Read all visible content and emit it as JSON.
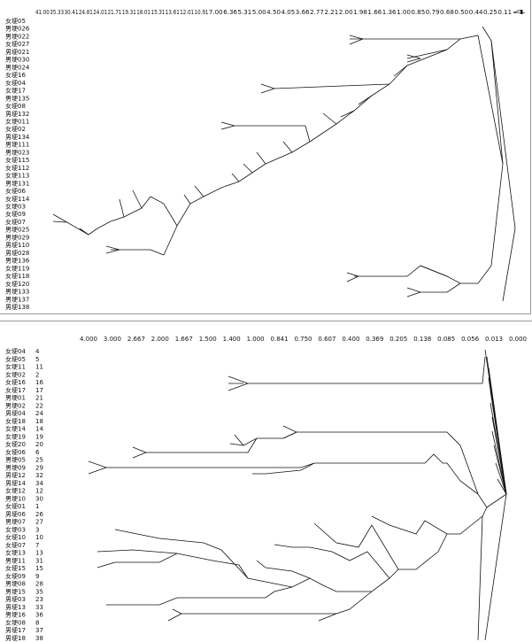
{
  "top_panel": {
    "scale_labels": [
      "41.00",
      "35.33",
      "30.41",
      "24.81",
      "24.01",
      "21.71",
      "19.31",
      "18.01",
      "15.31",
      "13.61",
      "12.01",
      "10.91",
      "7.00",
      "6.36",
      "5.31",
      "5.00",
      "4.50",
      "4.05",
      "3.66",
      "2.77",
      "2.21",
      "2.00",
      "1.98",
      "1.66",
      "1.36",
      "1.00",
      "0.85",
      "0.79",
      "0.68",
      "0.50",
      "0.44",
      "0.25",
      "0.11",
      "4"
    ],
    "leaves": [
      "女埂05",
      "男埂026",
      "男埂022",
      "女埂027",
      "男埂021",
      "男埂030",
      "男埂024",
      "女埂16",
      "女埂04",
      "女埂17",
      "男埂135",
      "女埂08",
      "男埂132",
      "女埂011",
      "女埂02",
      "男埂134",
      "男埂111",
      "男埂023",
      "女埂115",
      "女埂112",
      "女埂113",
      "男埂131",
      "女埂06",
      "女埂114",
      "女埂03",
      "女埂09",
      "女埂07",
      "男埂025",
      "男埂029",
      "男埂110",
      "男埂028",
      "男埂136",
      "女埂119",
      "女埂118",
      "女埂120",
      "男埂133",
      "男埂137",
      "男埂138"
    ]
  },
  "bottom_panel": {
    "scale_labels": [
      "4.000",
      "3.000",
      "2.667",
      "2.000",
      "1.667",
      "1.500",
      "1.400",
      "1.000",
      "0.841",
      "0.750",
      "0.607",
      "0.400",
      "0.369",
      "0.205",
      "0.138",
      "0.085",
      "0.056",
      "0.013",
      "0.000"
    ],
    "leaves": [
      {
        "label": "女埂04",
        "code": "4"
      },
      {
        "label": "女埂05",
        "code": "5"
      },
      {
        "label": "女埂11",
        "code": "11"
      },
      {
        "label": "女埂02",
        "code": "2"
      },
      {
        "label": "女埂16",
        "code": "16"
      },
      {
        "label": "女埂17",
        "code": "17"
      },
      {
        "label": "男埂01",
        "code": "21"
      },
      {
        "label": "男埂02",
        "code": "22"
      },
      {
        "label": "男埂04",
        "code": "24"
      },
      {
        "label": "女埂18",
        "code": "18"
      },
      {
        "label": "女埂14",
        "code": "14"
      },
      {
        "label": "女埂19",
        "code": "19"
      },
      {
        "label": "女埂20",
        "code": "20"
      },
      {
        "label": "女埂06",
        "code": "6"
      },
      {
        "label": "男埂05",
        "code": "25"
      },
      {
        "label": "男埂09",
        "code": "29"
      },
      {
        "label": "男埂12",
        "code": "32"
      },
      {
        "label": "男埂14",
        "code": "34"
      },
      {
        "label": "女埂12",
        "code": "12"
      },
      {
        "label": "男埂10",
        "code": "30"
      },
      {
        "label": "女埂01",
        "code": "1"
      },
      {
        "label": "男埂06",
        "code": "26"
      },
      {
        "label": "男埂07",
        "code": "27"
      },
      {
        "label": "女埂03",
        "code": "3"
      },
      {
        "label": "女埂10",
        "code": "10"
      },
      {
        "label": "女埂07",
        "code": "7"
      },
      {
        "label": "女埂13",
        "code": "13"
      },
      {
        "label": "男埂11",
        "code": "31"
      },
      {
        "label": "女埂15",
        "code": "15"
      },
      {
        "label": "女埂09",
        "code": "9"
      },
      {
        "label": "男埂08",
        "code": "28"
      },
      {
        "label": "男埂15",
        "code": "35"
      },
      {
        "label": "男埂03",
        "code": "23"
      },
      {
        "label": "男埂13",
        "code": "33"
      },
      {
        "label": "男埂16",
        "code": "36"
      },
      {
        "label": "女埂08",
        "code": "8"
      },
      {
        "label": "男埂17",
        "code": "37"
      },
      {
        "label": "男埂18",
        "code": "38"
      }
    ]
  }
}
